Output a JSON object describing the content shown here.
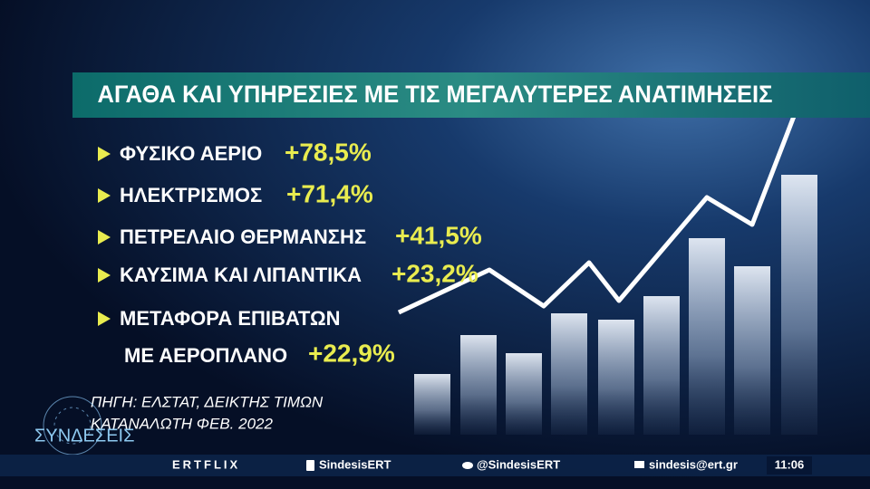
{
  "header": {
    "title": "ΑΓΑΘΑ ΚΑΙ ΥΠΗΡΕΣΙΕΣ ΜΕ ΤΙΣ ΜΕΓΑΛΥΤΕΡΕΣ ΑΝΑΤΙΜΗΣΕΙΣ"
  },
  "items": [
    {
      "label": "ΦΥΣΙΚΟ ΑΕΡΙΟ",
      "value": "+78,5%"
    },
    {
      "label": "ΗΛΕΚΤΡΙΣΜΟΣ",
      "value": "+71,4%"
    },
    {
      "label": "ΠΕΤΡΕΛΑΙΟ ΘΕΡΜΑΝΣΗΣ",
      "value": "+41,5%"
    },
    {
      "label": "ΚΑΥΣΙΜΑ ΚΑΙ ΛΙΠΑΝΤΙΚΑ",
      "value": "+23,2%"
    },
    {
      "label": "ΜΕΤΑΦΟΡΑ ΕΠΙΒΑΤΩΝ",
      "label_line2": "ΜΕ ΑΕΡΟΠΛΑΝΟ",
      "value": "+22,9%"
    }
  ],
  "source": [
    "ΠΗΓΗ: ΕΛΣΤΑΤ, ΔΕΙΚΤΗΣ ΤΙΜΩΝ",
    "ΚΑΤΑΝΑΛΩΤΗ ΦΕΒ. 2022"
  ],
  "logo": "ΣΥΝΔΕΣΕΙΣ",
  "footer": {
    "brand": "ERTFLIX",
    "facebook": "SindesisERT",
    "twitter": "@SindesisERT",
    "email": "sindesis@ert.gr",
    "clock": "11:06"
  }
}
